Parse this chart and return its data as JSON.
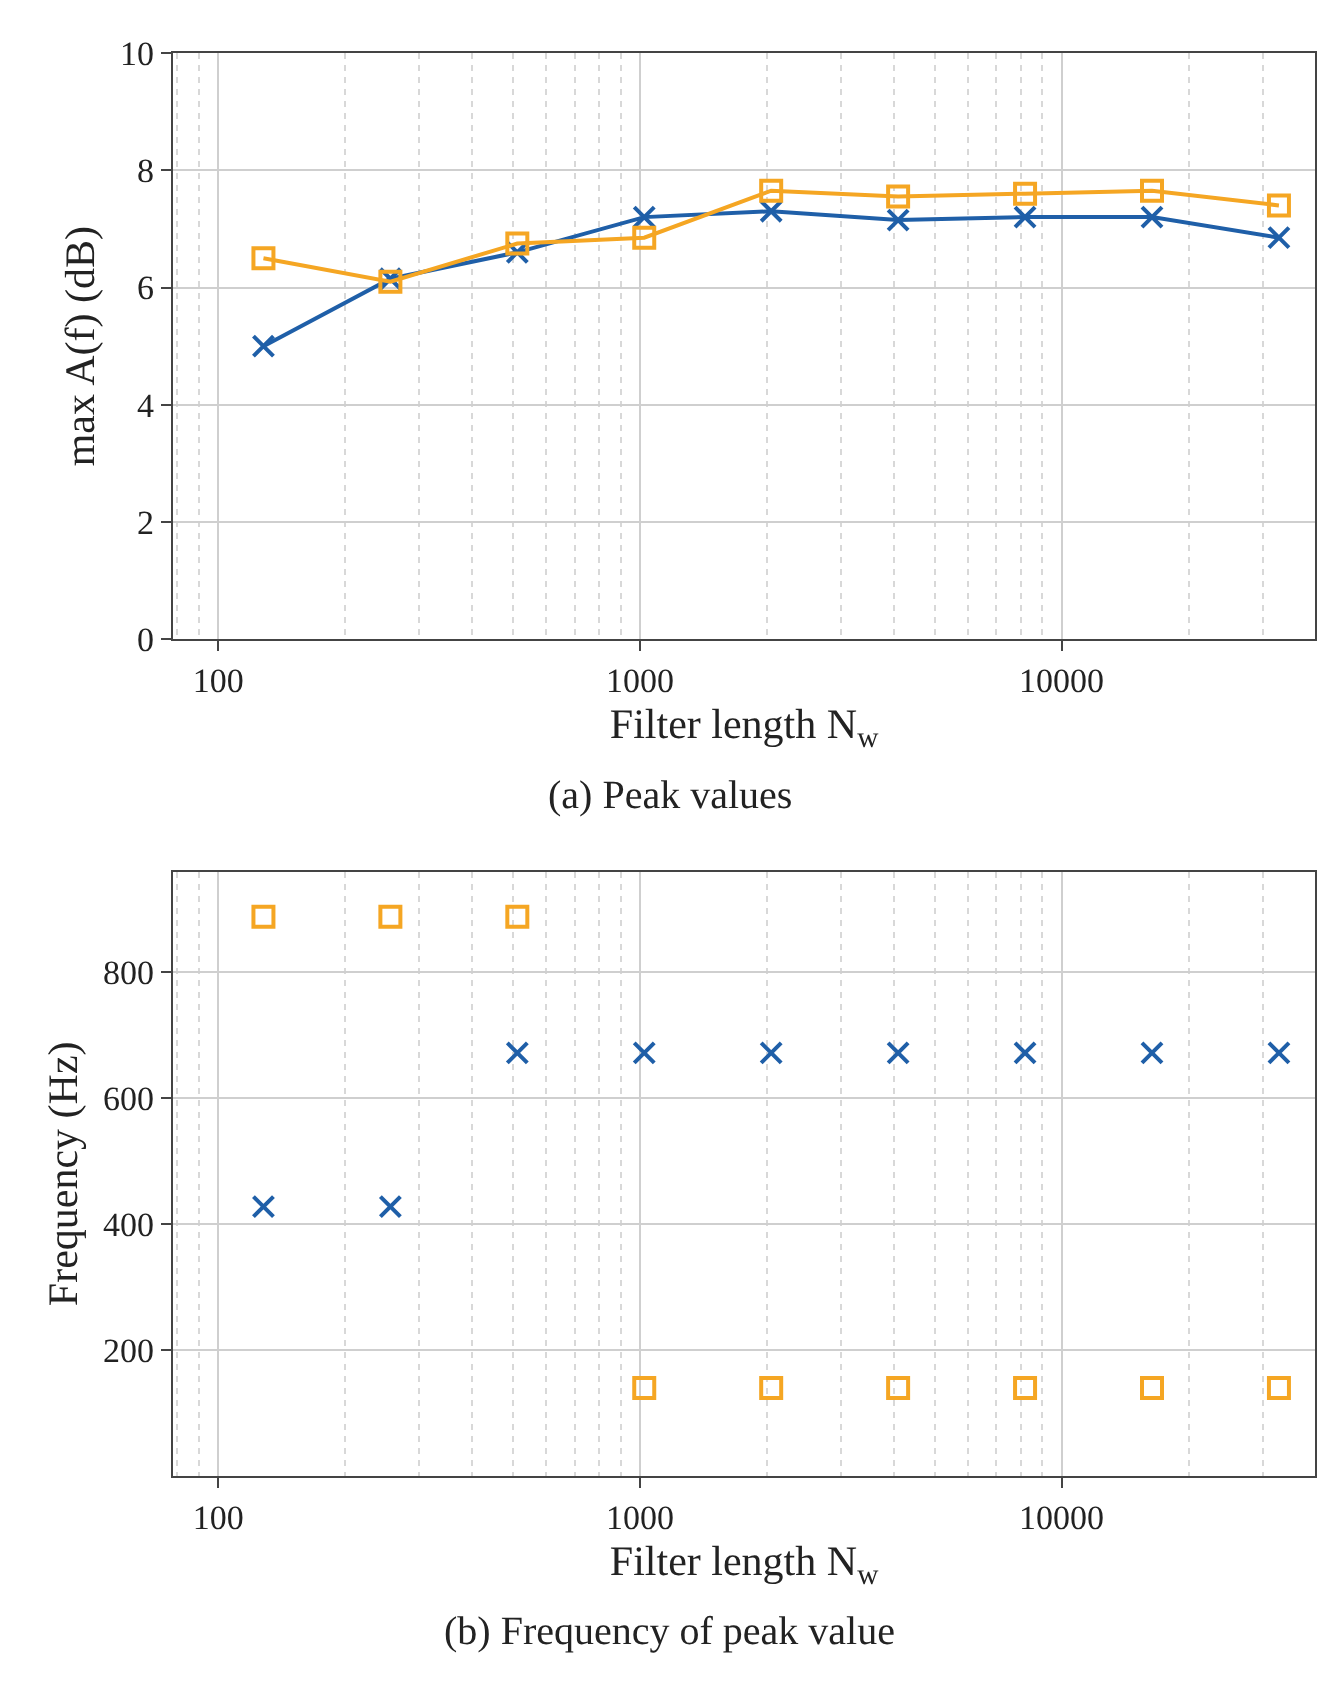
{
  "chart_data": [
    {
      "type": "line",
      "xlabel": "Filter length N$_{w}$",
      "ylabel": "max A(f) (dB)",
      "log": "x",
      "grid": true,
      "annotations": [
        "(a) Peak values"
      ],
      "x": [
        128,
        256,
        512,
        1024,
        2048,
        4096,
        8192,
        16384,
        32768
      ],
      "xlim": [
        78,
        40000
      ],
      "xticks": [
        100,
        1000,
        10000
      ],
      "ylim": [
        0,
        10
      ],
      "yticks": [
        0,
        2,
        4,
        6,
        8,
        10
      ],
      "series": [
        {
          "color": "#1f5fa8",
          "marker": "cross",
          "values": [
            5.0,
            6.15,
            6.6,
            7.2,
            7.3,
            7.15,
            7.2,
            7.2,
            6.85
          ]
        },
        {
          "color": "#f5a623",
          "marker": "square",
          "values": [
            6.5,
            6.1,
            6.75,
            6.85,
            7.65,
            7.55,
            7.6,
            7.65,
            7.4
          ]
        }
      ]
    },
    {
      "type": "scatter",
      "xlabel": "Filter length N$_{w}$",
      "ylabel": "Frequency (Hz)",
      "log": "x",
      "grid": true,
      "annotations": [
        "(b) Frequency of peak value"
      ],
      "x": [
        128,
        256,
        512,
        1024,
        2048,
        4096,
        8192,
        16384,
        32768
      ],
      "xlim": [
        78,
        40000
      ],
      "xticks": [
        100,
        1000,
        10000
      ],
      "ylim": [
        0,
        960
      ],
      "yticks": [
        200,
        400,
        600,
        800
      ],
      "series": [
        {
          "color": "#1f5fa8",
          "marker": "cross",
          "values": [
            428,
            428,
            672,
            672,
            672,
            672,
            672,
            672,
            672
          ]
        },
        {
          "color": "#f5a623",
          "marker": "square",
          "values": [
            888,
            888,
            888,
            140,
            140,
            140,
            140,
            140,
            140
          ]
        }
      ]
    }
  ]
}
